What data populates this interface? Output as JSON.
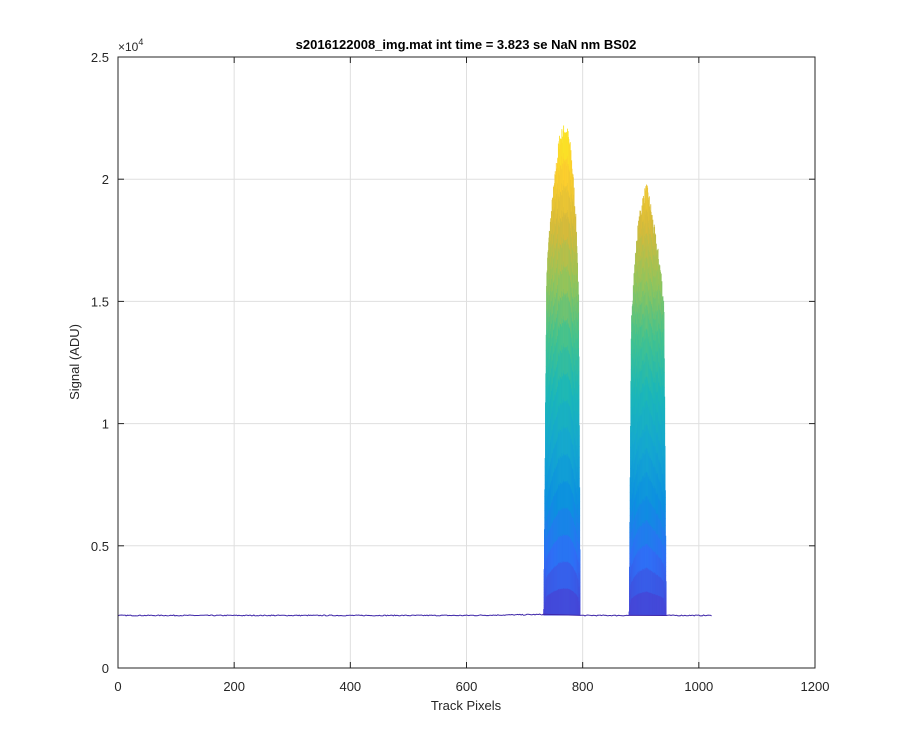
{
  "chart_data": {
    "type": "line",
    "title": "s2016122008_img.mat int time = 3.823 se  NaN nm BS02",
    "xlabel": "Track Pixels",
    "ylabel": "Signal (ADU)",
    "y_exponent_label": "×10",
    "y_exponent_power": "4",
    "xlim": [
      0,
      1200
    ],
    "ylim": [
      0,
      25000
    ],
    "x_ticks": [
      0,
      200,
      400,
      600,
      800,
      1000,
      1200
    ],
    "x_tick_labels": [
      "0",
      "200",
      "400",
      "600",
      "800",
      "1000",
      "1200"
    ],
    "y_ticks": [
      0,
      5000,
      10000,
      15000,
      20000,
      25000
    ],
    "y_tick_labels": [
      "0",
      "0.5",
      "1",
      "1.5",
      "2",
      "2.5"
    ],
    "grid": true,
    "colormap": [
      "#3e26a8",
      "#4743d4",
      "#2f6ff6",
      "#0d90e0",
      "#15a7d0",
      "#1cb7b8",
      "#44c28e",
      "#92c45c",
      "#d5ba3b",
      "#fcce2e",
      "#f9f520"
    ],
    "baseline": 2150,
    "x_end": 1023,
    "peaks": [
      {
        "x_start": 733,
        "x_end": 796,
        "profile": [
          [
            733,
            2400
          ],
          [
            738,
            16000
          ],
          [
            742,
            17500
          ],
          [
            748,
            19000
          ],
          [
            755,
            20500
          ],
          [
            760,
            21500
          ],
          [
            765,
            21800
          ],
          [
            770,
            22000
          ],
          [
            775,
            21700
          ],
          [
            780,
            21000
          ],
          [
            785,
            19500
          ],
          [
            790,
            17500
          ],
          [
            793,
            15000
          ],
          [
            796,
            2300
          ]
        ]
      },
      {
        "x_start": 880,
        "x_end": 944,
        "profile": [
          [
            880,
            2300
          ],
          [
            884,
            14500
          ],
          [
            890,
            16500
          ],
          [
            895,
            17800
          ],
          [
            900,
            18600
          ],
          [
            905,
            19200
          ],
          [
            910,
            19500
          ],
          [
            915,
            19000
          ],
          [
            920,
            18300
          ],
          [
            925,
            17500
          ],
          [
            930,
            16800
          ],
          [
            935,
            16000
          ],
          [
            940,
            14700
          ],
          [
            944,
            2300
          ]
        ]
      }
    ]
  }
}
